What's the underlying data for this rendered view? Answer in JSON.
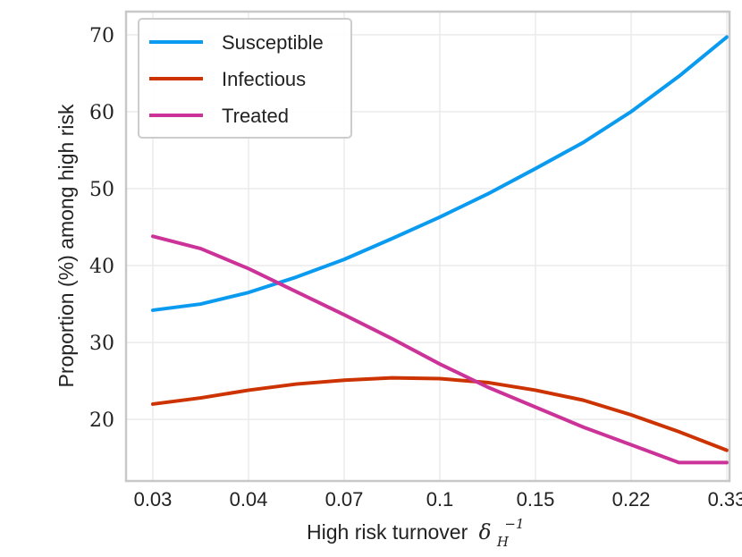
{
  "chart_data": {
    "type": "line",
    "xlabel": "High risk turnover",
    "xlabel_math": "δ",
    "xlabel_sub": "H",
    "xlabel_sup": "−1",
    "ylabel": "Proportion (%) among high risk",
    "x_ticks": [
      "0.03",
      "0.04",
      "0.07",
      "0.1",
      "0.15",
      "0.22",
      "0.33"
    ],
    "y_ticks": [
      20,
      30,
      40,
      50,
      60,
      70
    ],
    "ylim": [
      12,
      73
    ],
    "x": [
      0,
      0.5,
      1,
      1.5,
      2,
      2.5,
      3,
      3.5,
      4,
      4.5,
      5,
      5.5,
      6
    ],
    "grid": true,
    "legend_position": "top-left",
    "series": [
      {
        "name": "Susceptible",
        "color": "#0a9bf0",
        "values": [
          34.2,
          35.0,
          36.5,
          38.5,
          40.8,
          43.5,
          46.3,
          49.3,
          52.6,
          56.0,
          60.0,
          64.6,
          69.7
        ]
      },
      {
        "name": "Infectious",
        "color": "#cc3300",
        "values": [
          22.0,
          22.8,
          23.8,
          24.6,
          25.1,
          25.4,
          25.3,
          24.8,
          23.8,
          22.5,
          20.6,
          18.4,
          16.0
        ]
      },
      {
        "name": "Treated",
        "color": "#cc3399",
        "values": [
          43.8,
          42.2,
          39.6,
          36.6,
          33.6,
          30.5,
          27.2,
          24.2,
          21.6,
          19.0,
          16.7,
          14.4,
          14.4
        ]
      }
    ]
  }
}
